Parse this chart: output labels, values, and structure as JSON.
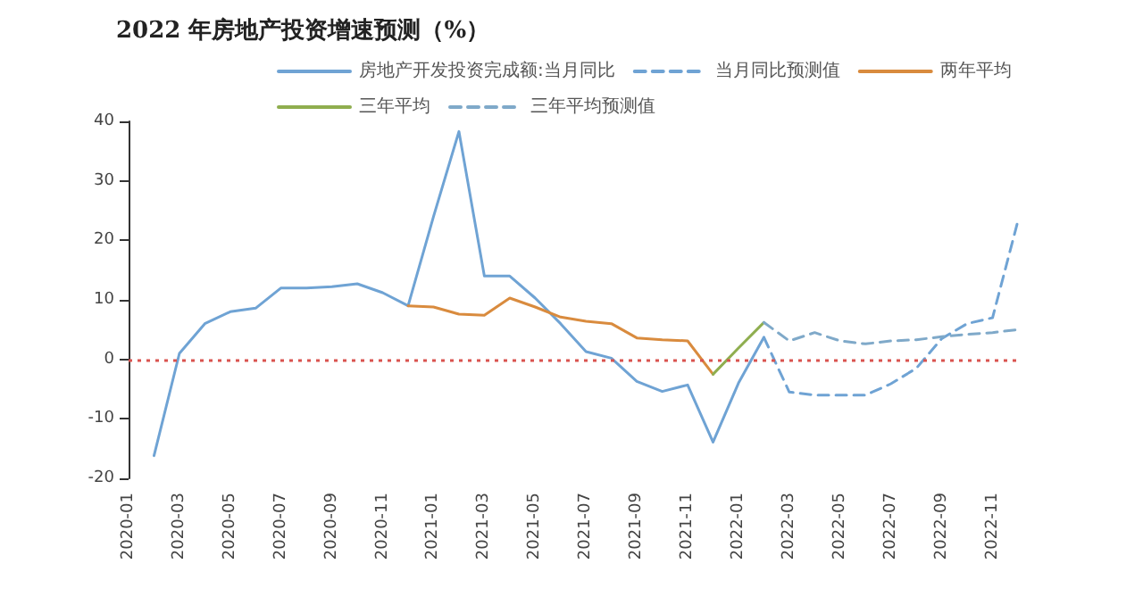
{
  "chart_data": {
    "type": "line",
    "title": "2022 年房地产投资增速预测（%）",
    "categories": [
      "2020-01",
      null,
      "2020-03",
      null,
      "2020-05",
      null,
      "2020-07",
      null,
      "2020-09",
      null,
      "2020-11",
      null,
      "2021-01",
      null,
      "2021-03",
      null,
      "2021-05",
      null,
      "2021-07",
      null,
      "2021-09",
      null,
      "2021-11",
      null,
      "2022-01",
      null,
      "2022-03",
      null,
      "2022-05",
      null,
      "2022-07",
      null,
      "2022-09",
      null,
      "2022-11",
      null
    ],
    "series": [
      {
        "name": "房地产开发投资完成额:当月同比",
        "color": "#6fa3d4",
        "line_style": "solid",
        "values": [
          null,
          -16.2,
          1,
          6,
          8,
          8.6,
          12,
          12,
          12.2,
          12.7,
          11.2,
          9,
          24,
          38.3,
          14,
          14,
          10.3,
          6,
          1.3,
          0.2,
          -3.7,
          -5.4,
          -4.3,
          -13.9,
          -4,
          3.7,
          null,
          null,
          null,
          null,
          null,
          null,
          null,
          null,
          null,
          null
        ]
      },
      {
        "name": "当月同比预测值",
        "color": "#6fa3d4",
        "line_style": "dashed",
        "values": [
          null,
          null,
          null,
          null,
          null,
          null,
          null,
          null,
          null,
          null,
          null,
          null,
          null,
          null,
          null,
          null,
          null,
          null,
          null,
          null,
          null,
          null,
          null,
          null,
          null,
          3.7,
          -5.5,
          -6,
          -6,
          -6,
          -4.1,
          -1.5,
          3.5,
          6,
          7,
          23.3
        ]
      },
      {
        "name": "两年平均",
        "color": "#d98b3e",
        "line_style": "solid",
        "values": [
          null,
          null,
          null,
          null,
          null,
          null,
          null,
          null,
          null,
          null,
          null,
          9,
          8.8,
          7.6,
          7.4,
          10.3,
          8.8,
          7.1,
          6.4,
          6,
          3.6,
          3.3,
          3.1,
          -2.5,
          null,
          null,
          null,
          null,
          null,
          null,
          null,
          null,
          null,
          null,
          null,
          null
        ]
      },
      {
        "name": "三年平均",
        "color": "#8fae4f",
        "line_style": "solid",
        "values": [
          null,
          null,
          null,
          null,
          null,
          null,
          null,
          null,
          null,
          null,
          null,
          null,
          null,
          null,
          null,
          null,
          null,
          null,
          null,
          null,
          null,
          null,
          null,
          -2.5,
          1.9,
          6.2,
          null,
          null,
          null,
          null,
          null,
          null,
          null,
          null,
          null,
          null
        ]
      },
      {
        "name": "三年平均预测值",
        "color": "#7fa9c9",
        "line_style": "dashed",
        "values": [
          null,
          null,
          null,
          null,
          null,
          null,
          null,
          null,
          null,
          null,
          null,
          null,
          null,
          null,
          null,
          null,
          null,
          null,
          null,
          null,
          null,
          null,
          null,
          null,
          null,
          6.2,
          3.1,
          4.5,
          3.1,
          2.6,
          3.1,
          3.3,
          3.8,
          4.2,
          4.5,
          5
        ]
      }
    ],
    "ylim": [
      -20,
      40
    ],
    "yticks": [
      -20,
      -10,
      0,
      10,
      20,
      30,
      40
    ],
    "ref_lines": [
      {
        "axis": "y",
        "value": 0,
        "color": "#d9534f",
        "line_style": "dotted"
      }
    ],
    "legend": "top",
    "marker": "none",
    "grid": false
  }
}
